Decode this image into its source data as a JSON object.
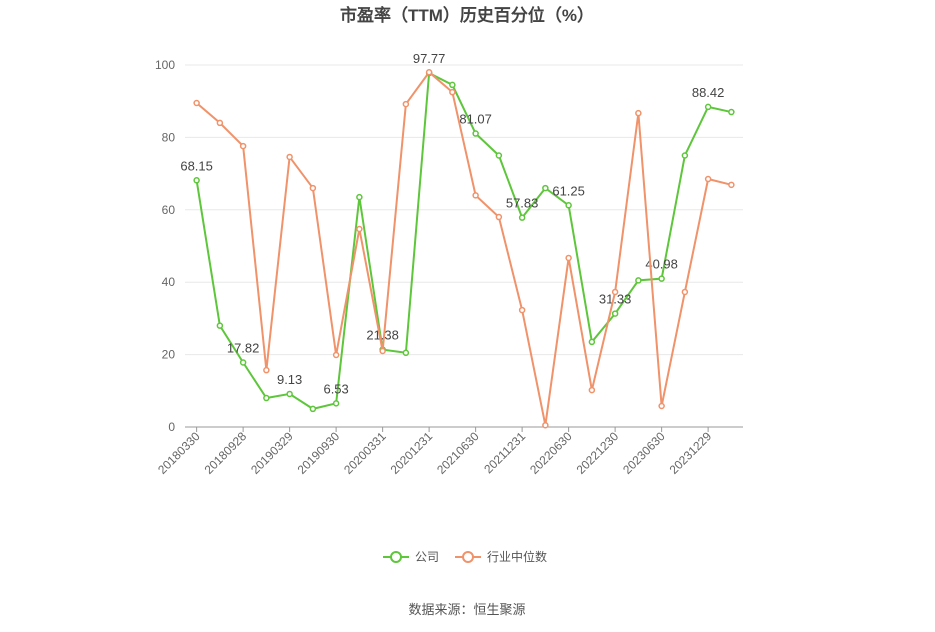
{
  "chart_data": {
    "type": "line",
    "title": "市盈率（TTM）历史百分位（%）",
    "categories": [
      "20180330",
      null,
      "20180928",
      null,
      "20190329",
      null,
      "20190930",
      null,
      "20200331",
      null,
      "20201231",
      null,
      "20210630",
      null,
      "20211231",
      null,
      "20220630",
      null,
      "20221230",
      null,
      "20230630",
      null,
      "20231229",
      null
    ],
    "series": [
      {
        "name": "公司",
        "color": "#5ec63b",
        "values": [
          68.15,
          28,
          17.82,
          8,
          9.13,
          5,
          6.53,
          63.5,
          21.38,
          20.5,
          97.77,
          94.5,
          81.07,
          75,
          57.83,
          66,
          61.25,
          23.5,
          31.33,
          40.5,
          40.98,
          75,
          88.42,
          87
        ],
        "value_labels": [
          "68.15",
          null,
          "17.82",
          null,
          "9.13",
          null,
          "6.53",
          null,
          "21.38",
          null,
          "97.77",
          null,
          "81.07",
          null,
          "57.83",
          null,
          "61.25",
          null,
          "31.33",
          null,
          "40.98",
          null,
          "88.42",
          null
        ]
      },
      {
        "name": "行业中位数",
        "color": "#f0926a",
        "values": [
          89.5,
          84,
          77.6,
          15.7,
          74.6,
          66,
          19.9,
          54.7,
          21,
          89.2,
          98,
          92.5,
          64,
          58,
          32.3,
          0.5,
          46.7,
          10.2,
          37.3,
          86.7,
          5.8,
          37.3,
          68.5,
          66.9
        ]
      }
    ],
    "ylim": [
      0,
      100
    ],
    "yticks": [
      0,
      20,
      40,
      60,
      80,
      100
    ],
    "grid": true,
    "source": "数据来源：恒生聚源"
  }
}
